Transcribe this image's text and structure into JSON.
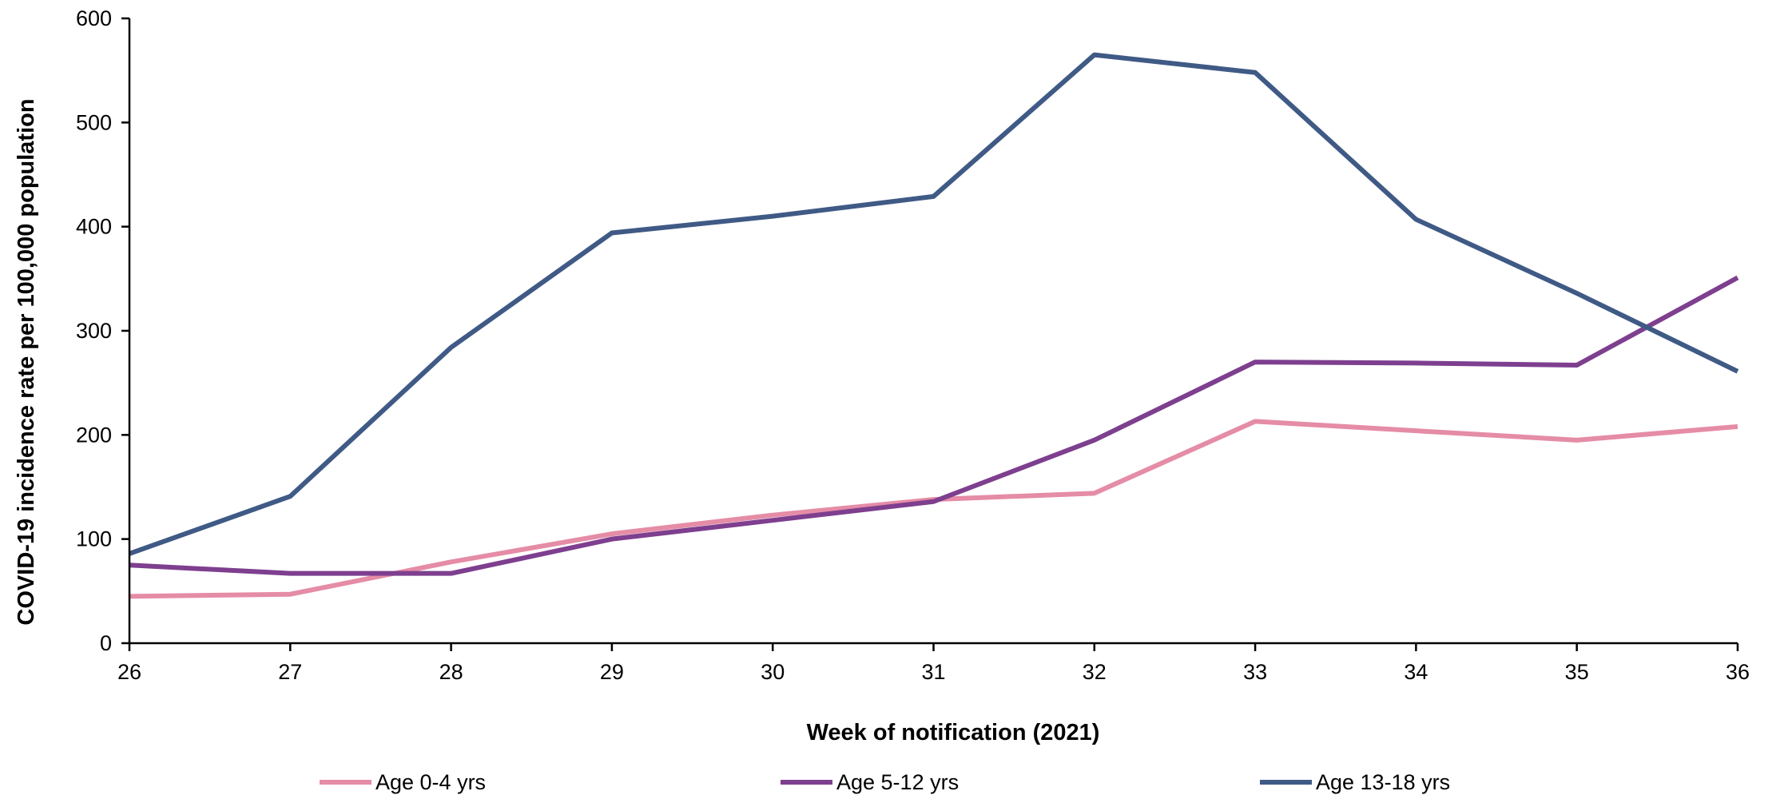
{
  "chart_data": {
    "type": "line",
    "xlabel": "Week of notification (2021)",
    "ylabel": "COVID-19 incidence rate per 100,000 population",
    "x": [
      26,
      27,
      28,
      29,
      30,
      31,
      32,
      33,
      34,
      35,
      36
    ],
    "xlim": [
      26,
      36
    ],
    "ylim": [
      0,
      600
    ],
    "y_ticks": [
      0,
      100,
      200,
      300,
      400,
      500,
      600
    ],
    "grid": false,
    "legend_position": "bottom",
    "series": [
      {
        "name": "Age 0-4 yrs",
        "color": "#E58CA6",
        "values": [
          45,
          47,
          78,
          105,
          123,
          138,
          144,
          213,
          204,
          195,
          208
        ]
      },
      {
        "name": "Age 5-12 yrs",
        "color": "#7E3F8F",
        "values": [
          75,
          67,
          67,
          100,
          118,
          136,
          195,
          270,
          269,
          267,
          351
        ]
      },
      {
        "name": "Age 13-18 yrs",
        "color": "#3F5A85",
        "values": [
          86,
          141,
          284,
          394,
          410,
          429,
          565,
          548,
          407,
          336,
          261
        ]
      }
    ]
  }
}
